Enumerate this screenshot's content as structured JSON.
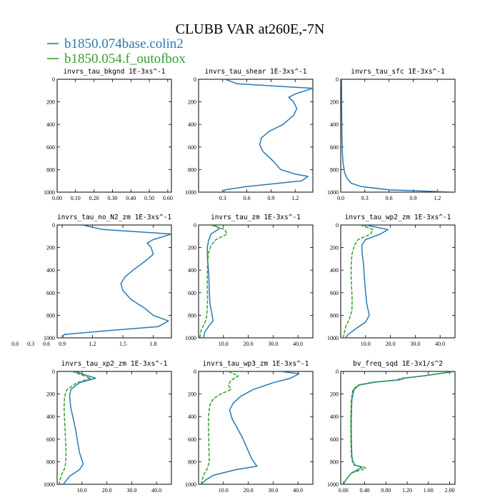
{
  "figure": {
    "title": "CLUBB VAR at260E,-7N",
    "legend": [
      {
        "label": "b1850.074base.colin2",
        "color": "#2878b4"
      },
      {
        "label": "b1850.054.f_outofbox",
        "color": "#33a02c"
      }
    ]
  },
  "chart_data": [
    {
      "type": "line",
      "title": "invrs_tau_bkgnd   1E-3xs^-1",
      "xlim": [
        0,
        0.62
      ],
      "ylim": [
        1000,
        0
      ],
      "xticks": [
        0,
        0.1,
        0.2,
        0.3,
        0.4,
        0.5,
        0.6
      ],
      "xtick_labels": [
        "0.00",
        "0.10",
        "0.20",
        "0.30",
        "0.40",
        "0.50",
        "0.60"
      ],
      "yticks": [
        0,
        200,
        400,
        600,
        800,
        1000
      ],
      "ytick_labels": [
        "0",
        "200",
        "400",
        "600",
        "800",
        "1000"
      ],
      "series": []
    },
    {
      "type": "line",
      "title": "invrs_tau_shear   1E-3xs^-1",
      "xlim": [
        0,
        1.42
      ],
      "ylim": [
        1000,
        0
      ],
      "xticks": [
        0.3,
        0.6,
        0.9,
        1.2
      ],
      "xtick_labels": [
        "0.3",
        "0.6",
        "0.9",
        "1.2"
      ],
      "yticks": [
        0,
        200,
        400,
        600,
        800,
        1000
      ],
      "ytick_labels": [
        "0",
        "200",
        "400",
        "600",
        "800",
        "1000"
      ],
      "series": [
        {
          "color": "#2878b4",
          "x": [
            0.33,
            0.48,
            1.42,
            1.2,
            1.12,
            1.18,
            1.22,
            1.18,
            1.05,
            0.88,
            0.78,
            0.76,
            0.8,
            0.92,
            1.02,
            1.2,
            1.36,
            1.28,
            0.6,
            0.33,
            0.3
          ],
          "y": [
            0,
            40,
            80,
            130,
            160,
            200,
            260,
            320,
            400,
            460,
            520,
            580,
            640,
            720,
            800,
            840,
            860,
            900,
            950,
            980,
            1000
          ]
        }
      ]
    },
    {
      "type": "line",
      "title": "invrs_tau_sfc   1E-3xs^-1",
      "xlim": [
        0,
        1.42
      ],
      "ylim": [
        1000,
        0
      ],
      "xticks": [
        0,
        0.3,
        0.6,
        0.9,
        1.2
      ],
      "xtick_labels": [
        "0.0",
        "0.3",
        "0.6",
        "0.9",
        "1.2"
      ],
      "yticks": [
        0,
        200,
        400,
        600,
        800,
        1000
      ],
      "ytick_labels": [
        "0",
        "200",
        "400",
        "600",
        "800",
        "1000"
      ],
      "series": [
        {
          "color": "#2878b4",
          "x": [
            0.01,
            0.012,
            0.015,
            0.02,
            0.03,
            0.05,
            0.08,
            0.13,
            0.25,
            0.6,
            1.42
          ],
          "y": [
            0,
            300,
            500,
            650,
            750,
            830,
            880,
            920,
            950,
            980,
            1000
          ]
        }
      ]
    },
    {
      "type": "line",
      "title": "invrs_tau_no_N2_zm   1E-3xs^-1",
      "xlim": [
        0.85,
        1.98
      ],
      "ylim": [
        1000,
        0
      ],
      "xticks": [
        0.9,
        1.2,
        1.5,
        1.8
      ],
      "xtick_labels": [
        "0.9",
        "1.2",
        "1.5",
        "1.8"
      ],
      "yticks": [
        0,
        200,
        400,
        600,
        800,
        1000
      ],
      "ytick_labels": [
        "0",
        "200",
        "400",
        "600",
        "800",
        "1000"
      ],
      "x_extra_tick_labels": [
        "0.0",
        "0.3",
        "0.6"
      ],
      "series": [
        {
          "color": "#2878b4",
          "x": [
            1.1,
            1.3,
            1.98,
            1.8,
            1.74,
            1.78,
            1.8,
            1.72,
            1.6,
            1.52,
            1.48,
            1.5,
            1.58,
            1.72,
            1.8,
            1.95,
            1.85,
            1.3,
            0.92,
            0.9
          ],
          "y": [
            0,
            40,
            80,
            130,
            160,
            200,
            260,
            320,
            400,
            460,
            520,
            580,
            660,
            740,
            800,
            850,
            900,
            940,
            970,
            1000
          ]
        }
      ]
    },
    {
      "type": "line",
      "title": "invrs_tau_zm   1E-3xs^-1",
      "xlim": [
        0,
        46
      ],
      "ylim": [
        1000,
        0
      ],
      "xticks": [
        10,
        20,
        30,
        40
      ],
      "xtick_labels": [
        "10.0",
        "20.0",
        "30.0",
        "40.0"
      ],
      "yticks": [
        0,
        200,
        400,
        600,
        800,
        1000
      ],
      "ytick_labels": [
        "0",
        "200",
        "400",
        "600",
        "800",
        "1000"
      ],
      "series": [
        {
          "color": "#2878b4",
          "x": [
            6.0,
            8.5,
            5.0,
            4.0,
            3.5,
            3.6,
            4.0,
            4.2,
            4.3,
            4.6,
            5.5,
            5.8,
            4.0,
            2.5,
            2.0
          ],
          "y": [
            0,
            30,
            80,
            140,
            200,
            300,
            400,
            500,
            600,
            700,
            800,
            850,
            900,
            950,
            1000
          ]
        },
        {
          "color": "#33a02c",
          "x": [
            5.0,
            10.5,
            11.5,
            7.0,
            5.0,
            4.0,
            3.6,
            3.5,
            3.5,
            3.6,
            3.5,
            3.2,
            2.5,
            1.0,
            0.5
          ],
          "y": [
            0,
            40,
            80,
            130,
            180,
            250,
            350,
            450,
            550,
            650,
            750,
            820,
            870,
            930,
            1000
          ]
        }
      ]
    },
    {
      "type": "line",
      "title": "invrs_tau_wp2_zm   1E-3xs^-1",
      "xlim": [
        0,
        46
      ],
      "ylim": [
        1000,
        0
      ],
      "xticks": [
        10,
        20,
        30,
        40
      ],
      "xtick_labels": [
        "10.0",
        "20.0",
        "30.0",
        "40.0"
      ],
      "yticks": [
        0,
        200,
        400,
        600,
        800,
        1000
      ],
      "ytick_labels": [
        "0",
        "200",
        "400",
        "600",
        "800",
        "1000"
      ],
      "series": [
        {
          "color": "#2878b4",
          "x": [
            10.0,
            19.0,
            16.0,
            10.0,
            8.5,
            8.6,
            9.2,
            9.5,
            9.8,
            10.5,
            11.5,
            10.0,
            6.0,
            3.0,
            2.0
          ],
          "y": [
            0,
            40,
            80,
            130,
            180,
            250,
            350,
            450,
            550,
            700,
            800,
            860,
            920,
            970,
            1000
          ]
        },
        {
          "color": "#33a02c",
          "x": [
            8.0,
            13.0,
            12.0,
            7.0,
            5.5,
            4.5,
            4.2,
            4.2,
            4.4,
            4.6,
            4.5,
            3.5,
            2.0,
            1.0
          ],
          "y": [
            0,
            40,
            80,
            130,
            180,
            260,
            360,
            460,
            560,
            660,
            760,
            830,
            900,
            1000
          ]
        }
      ]
    },
    {
      "type": "line",
      "title": "invrs_tau_xp2_zm   1E-3xs^-1",
      "xlim": [
        0,
        46
      ],
      "ylim": [
        1000,
        0
      ],
      "xticks": [
        10,
        20,
        30,
        40
      ],
      "xtick_labels": [
        "10.0",
        "20.0",
        "30.0",
        "40.0"
      ],
      "yticks": [
        0,
        200,
        400,
        600,
        800,
        1000
      ],
      "ytick_labels": [
        "0",
        "200",
        "400",
        "600",
        "800",
        "1000"
      ],
      "series": [
        {
          "color": "#2878b4",
          "x": [
            7.0,
            15.5,
            9.0,
            5.5,
            5.0,
            5.5,
            6.5,
            7.5,
            8.2,
            9.0,
            10.5,
            9.0,
            5.0,
            2.5
          ],
          "y": [
            0,
            60,
            100,
            160,
            220,
            320,
            420,
            520,
            620,
            720,
            820,
            870,
            930,
            1000
          ]
        },
        {
          "color": "#33a02c",
          "x": [
            6.0,
            13.5,
            8.0,
            4.0,
            3.0,
            2.8,
            3.0,
            3.2,
            3.4,
            3.6,
            3.5,
            3.0,
            1.5,
            0.8
          ],
          "y": [
            0,
            60,
            100,
            160,
            220,
            320,
            420,
            520,
            620,
            720,
            800,
            860,
            930,
            1000
          ]
        }
      ]
    },
    {
      "type": "line",
      "title": "invrs_tau_wp3_zm   1E-3xs^-1",
      "xlim": [
        0,
        46
      ],
      "ylim": [
        1000,
        0
      ],
      "xticks": [
        10,
        20,
        30,
        40
      ],
      "xtick_labels": [
        "10.0",
        "20.0",
        "30.0",
        "40.0"
      ],
      "yticks": [
        0,
        200,
        400,
        600,
        800,
        1000
      ],
      "ytick_labels": [
        "0",
        "200",
        "400",
        "600",
        "800",
        "1000"
      ],
      "series": [
        {
          "color": "#2878b4",
          "x": [
            33.0,
            40.5,
            37.0,
            30.0,
            22.0,
            17.0,
            14.0,
            12.5,
            13.5,
            15.5,
            17.5,
            19.5,
            21.5,
            23.5,
            15.0,
            6.0,
            3.0,
            1.0
          ],
          "y": [
            0,
            20,
            60,
            100,
            160,
            220,
            280,
            340,
            420,
            500,
            580,
            680,
            780,
            840,
            870,
            920,
            960,
            1000
          ]
        },
        {
          "color": "#33a02c",
          "x": [
            12.0,
            16.0,
            13.0,
            12.0,
            13.0,
            9.0,
            6.0,
            4.5,
            4.0,
            4.0,
            4.1,
            4.2,
            4.3,
            3.5,
            2.0,
            1.0
          ],
          "y": [
            0,
            40,
            80,
            120,
            160,
            200,
            240,
            300,
            400,
            500,
            600,
            700,
            800,
            860,
            920,
            1000
          ]
        }
      ]
    },
    {
      "type": "line",
      "title": "bv_freq_sqd   1E-3x1/s^2",
      "xlim": [
        -0.05,
        2.1
      ],
      "ylim": [
        1000,
        0
      ],
      "xticks": [
        0,
        0.4,
        0.8,
        1.2,
        1.6,
        2.0
      ],
      "xtick_labels": [
        "0.00",
        "0.40",
        "0.80",
        "1.20",
        "1.60",
        "2.00"
      ],
      "yticks": [
        0,
        200,
        400,
        600,
        800,
        1000
      ],
      "ytick_labels": [
        "0",
        "200",
        "400",
        "600",
        "800",
        "1000"
      ],
      "series": [
        {
          "color": "#2878b4",
          "x": [
            2.1,
            1.5,
            1.15,
            1.05,
            0.6,
            0.3,
            0.2,
            0.16,
            0.15,
            0.15,
            0.16,
            0.18,
            0.22,
            0.35,
            0.15,
            0.05,
            0.0
          ],
          "y": [
            0,
            40,
            60,
            75,
            95,
            120,
            160,
            250,
            400,
            600,
            750,
            800,
            830,
            850,
            900,
            960,
            1000
          ]
        },
        {
          "color": "#33a02c",
          "x": [
            2.1,
            1.5,
            1.1,
            1.0,
            0.55,
            0.28,
            0.18,
            0.15,
            0.14,
            0.14,
            0.15,
            0.17,
            0.2,
            0.4,
            0.42,
            0.15,
            0.05,
            0.0
          ],
          "y": [
            0,
            40,
            60,
            75,
            95,
            120,
            160,
            250,
            400,
            600,
            750,
            800,
            830,
            850,
            860,
            900,
            960,
            1000
          ]
        }
      ]
    }
  ]
}
